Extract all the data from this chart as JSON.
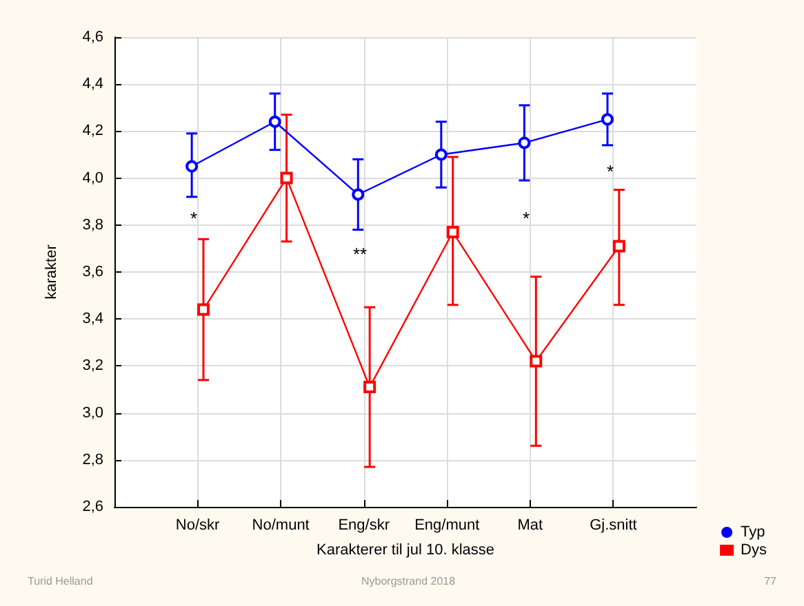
{
  "chart_data": {
    "type": "line",
    "xlabel": "Karakterer til jul 10. klasse",
    "ylabel": "karakter",
    "categories": [
      "No/skr",
      "No/munt",
      "Eng/skr",
      "Eng/munt",
      "Mat",
      "Gj.snitt"
    ],
    "ylim": [
      2.6,
      4.6
    ],
    "yticks": [
      {
        "value": 2.6,
        "label": "2,6"
      },
      {
        "value": 2.8,
        "label": "2,8"
      },
      {
        "value": 3.0,
        "label": "3,0"
      },
      {
        "value": 3.2,
        "label": "3,2"
      },
      {
        "value": 3.4,
        "label": "3,4"
      },
      {
        "value": 3.6,
        "label": "3,6"
      },
      {
        "value": 3.8,
        "label": "3,8"
      },
      {
        "value": 4.0,
        "label": "4,0"
      },
      {
        "value": 4.2,
        "label": "4,2"
      },
      {
        "value": 4.4,
        "label": "4,4"
      },
      {
        "value": 4.6,
        "label": "4,6"
      }
    ],
    "grid": true,
    "legend": "bottom right",
    "series": [
      {
        "name": "Typ",
        "color": "#0000ff",
        "marker": "circle",
        "values": [
          4.05,
          4.24,
          3.93,
          4.1,
          4.15,
          4.25
        ],
        "errors": [
          [
            3.92,
            4.19
          ],
          [
            4.12,
            4.36
          ],
          [
            3.78,
            4.08
          ],
          [
            3.96,
            4.24
          ],
          [
            3.99,
            4.31
          ],
          [
            4.14,
            4.36
          ]
        ]
      },
      {
        "name": "Dys",
        "color": "#ff0000",
        "marker": "square",
        "values": [
          3.44,
          4.0,
          3.11,
          3.77,
          3.22,
          3.71
        ],
        "errors": [
          [
            3.14,
            3.74
          ],
          [
            3.73,
            4.27
          ],
          [
            2.77,
            3.45
          ],
          [
            3.46,
            4.09
          ],
          [
            2.86,
            3.58
          ],
          [
            3.46,
            3.95
          ]
        ]
      }
    ],
    "annotations": [
      "*",
      "**",
      "*",
      "*",
      "Turid Helland",
      "Nyborgstrand 2018",
      "77"
    ]
  }
}
